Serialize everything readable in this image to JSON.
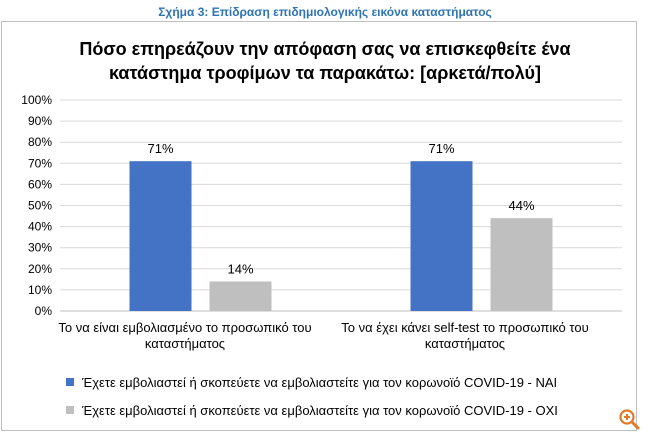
{
  "caption": "Σχήμα 3: Επίδραση επιδημιολογικής εικόνα καταστήματος",
  "icons": {
    "zoom": "zoom-in-icon"
  },
  "chart_data": {
    "type": "bar",
    "title_lines": [
      "Πόσο επηρεάζουν την απόφαση σας να επισκεφθείτε ένα",
      "κατάστημα τροφίμων τα παρακάτω: [αρκετά/πολύ]"
    ],
    "categories": [
      [
        "Το να είναι εμβολιασμένο το προσωπικό του",
        "καταστήματος"
      ],
      [
        "Το να έχει κάνει self-test το προσωπικό του",
        "καταστήματος"
      ]
    ],
    "series": [
      {
        "name": "Έχετε εμβολιαστεί ή σκοπεύετε να εμβολιαστείτε για τον κορωνοϊό COVID-19 - ΝΑΙ",
        "values": [
          71,
          71
        ],
        "labels": [
          "71%",
          "71%"
        ],
        "color": "#4472c4"
      },
      {
        "name": "Έχετε εμβολιαστεί ή σκοπεύετε να εμβολιαστείτε για τον κορωνοϊό COVID-19 - ΟΧΙ",
        "values": [
          14,
          44
        ],
        "labels": [
          "14%",
          "44%"
        ],
        "color": "#bfbfbf"
      }
    ],
    "ylim": [
      0,
      100
    ],
    "yticks": [
      "0%",
      "10%",
      "20%",
      "30%",
      "40%",
      "50%",
      "60%",
      "70%",
      "80%",
      "90%",
      "100%"
    ],
    "grid": true,
    "legend_position": "bottom"
  }
}
